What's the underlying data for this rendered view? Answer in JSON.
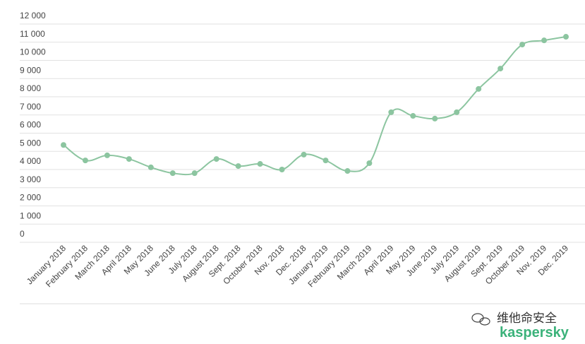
{
  "chart_data": {
    "type": "line",
    "categories": [
      "January 2018",
      "February 2018",
      "March 2018",
      "April 2018",
      "May 2018",
      "June 2018",
      "July 2018",
      "August 2018",
      "Sept. 2018",
      "October 2018",
      "Nov. 2018",
      "Dec. 2018",
      "January 2019",
      "February 2019",
      "March 2019",
      "April 2019",
      "May 2019",
      "June 2019",
      "July 2019",
      "August 2019",
      "Sept. 2019",
      "October 2019",
      "Nov. 2019",
      "Dec. 2019"
    ],
    "series": [
      {
        "color": "#8cc5a0",
        "values": [
          5350,
          4500,
          4780,
          4580,
          4120,
          3800,
          3800,
          4580,
          4190,
          4310,
          4000,
          4820,
          4500,
          3920,
          4350,
          7150,
          6950,
          6800,
          7150,
          8430,
          9550,
          10870,
          11100,
          11300
        ]
      }
    ],
    "ylim": [
      0,
      12000
    ],
    "yticks": [
      0,
      {
        "value": 1000,
        "label": "1 000"
      },
      {
        "value": 2000,
        "label": "2 000"
      },
      {
        "value": 3000,
        "label": "3 000"
      },
      {
        "value": 4000,
        "label": "4 000"
      },
      {
        "value": 5000,
        "label": "5 000"
      },
      {
        "value": 6000,
        "label": "6 000"
      },
      {
        "value": 7000,
        "label": "7 000"
      },
      {
        "value": 8000,
        "label": "8 000"
      },
      {
        "value": 9000,
        "label": "9 000"
      },
      {
        "value": 10000,
        "label": "10 000"
      },
      {
        "value": 11000,
        "label": "11 000"
      },
      {
        "value": 12000,
        "label": "12 000"
      }
    ],
    "grid": true
  },
  "watermark": {
    "channel": "维他命安全",
    "brand": "kaspersky"
  }
}
